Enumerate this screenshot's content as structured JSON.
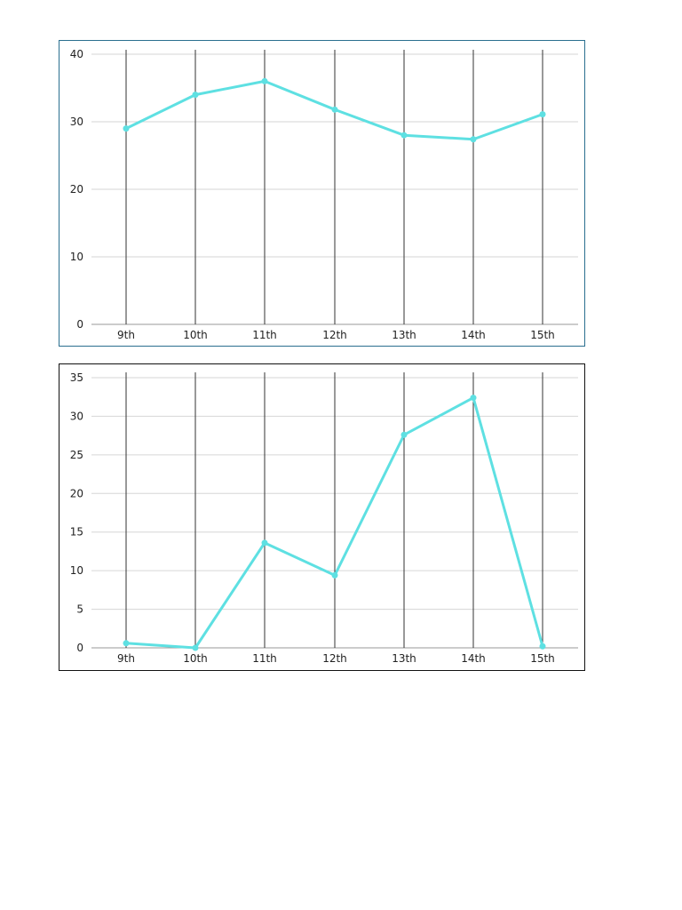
{
  "colors": {
    "line": "#5ee0e2",
    "grid": "#d6d6d6",
    "vline": "#333333",
    "chart1_border": "#2a6f8f",
    "chart2_border": "#111111"
  },
  "chart_data": [
    {
      "type": "line",
      "title": "",
      "xlabel": "",
      "ylabel": "",
      "categories": [
        "9th",
        "10th",
        "11th",
        "12th",
        "13th",
        "14th",
        "15th"
      ],
      "values": [
        29,
        34,
        36,
        31.8,
        28,
        27.4,
        31.1
      ],
      "yticks": [
        0,
        10,
        20,
        30,
        40
      ],
      "ylim": [
        0,
        40
      ],
      "grid": true,
      "legend": null
    },
    {
      "type": "line",
      "title": "",
      "xlabel": "",
      "ylabel": "",
      "categories": [
        "9th",
        "10th",
        "11th",
        "12th",
        "13th",
        "14th",
        "15th"
      ],
      "values": [
        0.6,
        0,
        13.6,
        9.4,
        27.6,
        32.4,
        0.2
      ],
      "yticks": [
        0,
        5,
        10,
        15,
        20,
        25,
        30,
        35
      ],
      "ylim": [
        0,
        35
      ],
      "grid": true,
      "legend": null
    }
  ]
}
